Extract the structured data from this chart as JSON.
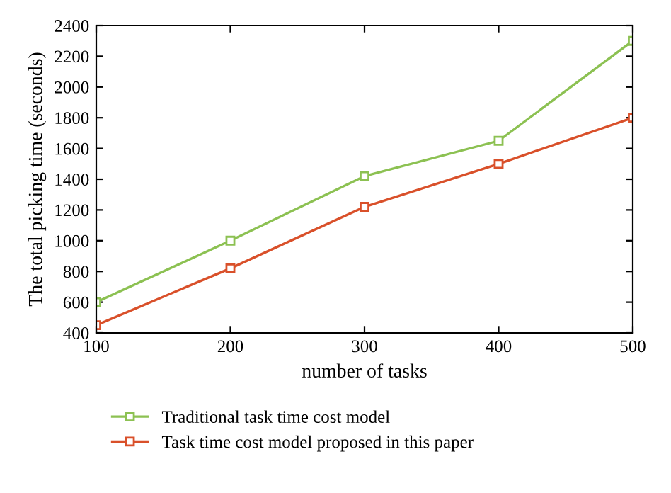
{
  "chart_data": {
    "type": "line",
    "xlabel": "number of tasks",
    "ylabel": "The total picking time (seconds)",
    "x": [
      100,
      200,
      300,
      400,
      500
    ],
    "series": [
      {
        "name": "Traditional task time cost model",
        "color": "#8cc152",
        "values": [
          600,
          1000,
          1420,
          1650,
          2300
        ]
      },
      {
        "name": "Task time cost model proposed in this paper",
        "color": "#d9502a",
        "values": [
          450,
          820,
          1220,
          1500,
          1800
        ]
      }
    ],
    "xlim": [
      100,
      500
    ],
    "xticks": [
      100,
      200,
      300,
      400,
      500
    ],
    "ylim": [
      400,
      2400
    ],
    "yticks": [
      400,
      600,
      800,
      1000,
      1200,
      1400,
      1600,
      1800,
      2000,
      2200,
      2400
    ],
    "grid": false,
    "legend": "bottom",
    "marker": "square",
    "line_style": "solid"
  }
}
